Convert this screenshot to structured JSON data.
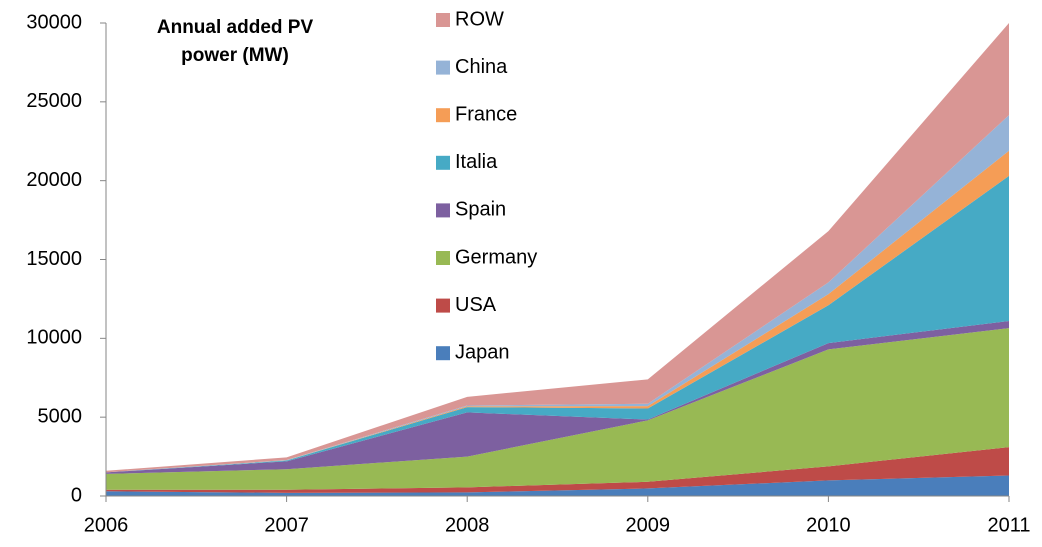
{
  "chart_data": {
    "type": "stacked_area",
    "title": "Annual added PV power (MW)",
    "x": [
      2006,
      2007,
      2008,
      2009,
      2010,
      2011
    ],
    "xlim": [
      2006,
      2011
    ],
    "xticks": [
      2006,
      2007,
      2008,
      2009,
      2010,
      2011
    ],
    "ylim": [
      0,
      30000
    ],
    "yticks": [
      0,
      5000,
      10000,
      15000,
      20000,
      25000,
      30000
    ],
    "grid": false,
    "series": [
      {
        "name": "Japan",
        "color": "#4a7ebb",
        "values": [
          300,
          200,
          230,
          480,
          990,
          1300
        ]
      },
      {
        "name": "USA",
        "color": "#be4b48",
        "values": [
          100,
          200,
          320,
          420,
          890,
          1800
        ]
      },
      {
        "name": "Germany",
        "color": "#98b954",
        "values": [
          1000,
          1300,
          1950,
          3900,
          7420,
          7550
        ]
      },
      {
        "name": "Spain",
        "color": "#7d60a0",
        "values": [
          100,
          500,
          2800,
          50,
          400,
          450
        ]
      },
      {
        "name": "Italia",
        "color": "#46aac5",
        "values": [
          0,
          50,
          340,
          700,
          2400,
          9200
        ]
      },
      {
        "name": "France",
        "color": "#f59d56",
        "values": [
          0,
          10,
          50,
          150,
          700,
          1600
        ]
      },
      {
        "name": "China",
        "color": "#95b3d7",
        "values": [
          0,
          20,
          50,
          150,
          750,
          2260
        ]
      },
      {
        "name": "ROW",
        "color": "#d99694",
        "values": [
          100,
          170,
          550,
          1550,
          3250,
          5840
        ]
      }
    ]
  }
}
